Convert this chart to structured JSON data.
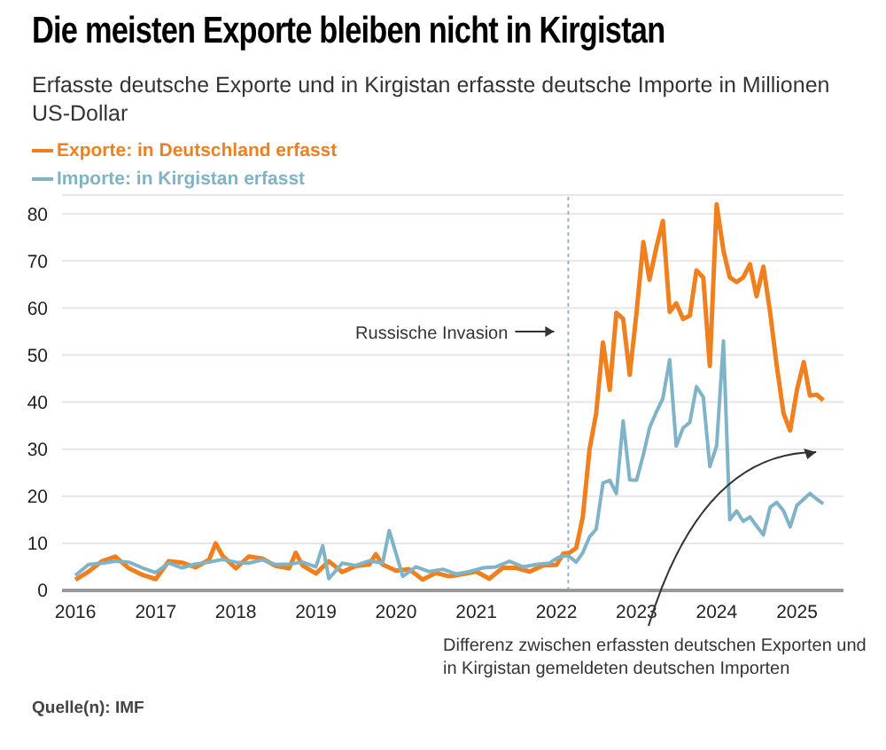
{
  "chart_data": {
    "type": "line",
    "title": "Die meisten Exporte bleiben nicht in Kirgistan",
    "subtitle": "Erfasste deutsche Exporte und in Kirgistan erfasste deutsche Importe in Millionen US-Dollar",
    "series": [
      {
        "name": "Exporte: in Deutschland erfasst",
        "color": "#f07f1e",
        "x": [
          "2016-01",
          "2016-03",
          "2016-05",
          "2016-07",
          "2016-09",
          "2016-11",
          "2017-01",
          "2017-03",
          "2017-05",
          "2017-07",
          "2017-09",
          "2017-10",
          "2017-11",
          "2018-01",
          "2018-03",
          "2018-05",
          "2018-07",
          "2018-09",
          "2018-10",
          "2018-11",
          "2019-01",
          "2019-03",
          "2019-05",
          "2019-07",
          "2019-09",
          "2019-10",
          "2019-11",
          "2020-01",
          "2020-03",
          "2020-05",
          "2020-07",
          "2020-09",
          "2020-11",
          "2021-01",
          "2021-03",
          "2021-05",
          "2021-07",
          "2021-09",
          "2021-11",
          "2022-01",
          "2022-02",
          "2022-03",
          "2022-04",
          "2022-05",
          "2022-06",
          "2022-07",
          "2022-08",
          "2022-09",
          "2022-10",
          "2022-11",
          "2022-12",
          "2023-01",
          "2023-02",
          "2023-03",
          "2023-04",
          "2023-05",
          "2023-06",
          "2023-07",
          "2023-08",
          "2023-09",
          "2023-10",
          "2023-11",
          "2023-12",
          "2024-01",
          "2024-02",
          "2024-03",
          "2024-04",
          "2024-05",
          "2024-06",
          "2024-07",
          "2024-08",
          "2024-09",
          "2024-10",
          "2024-11",
          "2024-12",
          "2025-01",
          "2025-02",
          "2025-03",
          "2025-04",
          "2025-05"
        ],
        "values": [
          2.3,
          4,
          6.2,
          7.2,
          4.7,
          3.3,
          2.4,
          6.2,
          5.9,
          4.9,
          6.5,
          10,
          7.4,
          4.7,
          7.2,
          6.8,
          5.2,
          4.7,
          8,
          5.3,
          3.6,
          6.2,
          3.9,
          5.2,
          5.5,
          7.7,
          5.5,
          4.2,
          4.5,
          2.3,
          3.7,
          3.0,
          3.5,
          4,
          2.5,
          4.8,
          4.8,
          4.0,
          5.3,
          5.4,
          7.8,
          8,
          9,
          15.6,
          30,
          37.6,
          52.7,
          42.6,
          59,
          57.7,
          45.8,
          59,
          74,
          66,
          72.8,
          78.5,
          59.2,
          61,
          57.7,
          58.4,
          68,
          66.5,
          47.7,
          82,
          72.2,
          66.5,
          65.5,
          66.5,
          69.3,
          62.5,
          68.8,
          59,
          47.7,
          37.6,
          34,
          42.6,
          48.5,
          41.4,
          41.6,
          40.4
        ]
      },
      {
        "name": "Importe: in Kirgistan erfasst",
        "color": "#7fb3c8",
        "x": [
          "2016-01",
          "2016-03",
          "2016-05",
          "2016-07",
          "2016-09",
          "2016-11",
          "2017-01",
          "2017-03",
          "2017-05",
          "2017-07",
          "2017-09",
          "2017-11",
          "2018-01",
          "2018-03",
          "2018-05",
          "2018-07",
          "2018-09",
          "2018-11",
          "2019-01",
          "2019-02",
          "2019-03",
          "2019-05",
          "2019-07",
          "2019-09",
          "2019-11",
          "2019-12",
          "2020-02",
          "2020-04",
          "2020-06",
          "2020-08",
          "2020-10",
          "2020-12",
          "2021-02",
          "2021-04",
          "2021-06",
          "2021-08",
          "2021-10",
          "2021-12",
          "2022-01",
          "2022-02",
          "2022-03",
          "2022-04",
          "2022-05",
          "2022-06",
          "2022-07",
          "2022-08",
          "2022-09",
          "2022-10",
          "2022-11",
          "2022-12",
          "2023-01",
          "2023-02",
          "2023-03",
          "2023-04",
          "2023-05",
          "2023-06",
          "2023-07",
          "2023-08",
          "2023-09",
          "2023-10",
          "2023-11",
          "2023-12",
          "2024-01",
          "2024-02",
          "2024-03",
          "2024-04",
          "2024-05",
          "2024-06",
          "2024-07",
          "2024-08",
          "2024-09",
          "2024-10",
          "2024-11",
          "2024-12",
          "2025-01",
          "2025-02",
          "2025-03",
          "2025-04",
          "2025-05"
        ],
        "values": [
          3.2,
          5.5,
          5.8,
          6.2,
          6.0,
          4.8,
          3.8,
          5.8,
          4.8,
          5.6,
          6.0,
          6.6,
          6.0,
          5.8,
          6.5,
          5.5,
          5.6,
          6.0,
          5.0,
          9.5,
          2.5,
          5.8,
          5.3,
          6.3,
          5.8,
          12.7,
          3,
          5,
          4,
          4.5,
          3.5,
          4,
          4.8,
          5.0,
          6.2,
          5.0,
          5.5,
          5.8,
          6.8,
          7.4,
          7.2,
          6,
          8,
          11.4,
          13,
          22.8,
          23.4,
          20.6,
          36,
          23.5,
          23.4,
          28.8,
          34.5,
          37.9,
          40.8,
          49,
          30.7,
          34.5,
          35.7,
          43.3,
          41.1,
          26.3,
          30.7,
          53,
          15,
          16.9,
          14.7,
          15.6,
          13.7,
          11.8,
          17.7,
          18.7,
          16.9,
          13.5,
          18.1,
          19.4,
          20.6,
          19.4,
          18.4
        ]
      }
    ],
    "xlim": [
      "2015-11",
      "2025-08"
    ],
    "xticks": [
      "2016",
      "2017",
      "2018",
      "2019",
      "2020",
      "2021",
      "2022",
      "2023",
      "2024",
      "2025"
    ],
    "ylim": [
      0,
      84
    ],
    "yticks": [
      0,
      10,
      20,
      30,
      40,
      50,
      60,
      70,
      80
    ],
    "grid": "y",
    "legend": "top left",
    "marker": "none",
    "line_style": "solid",
    "ref_lines": [
      {
        "axis": "x",
        "value": "2022-02-24",
        "label": "Russische Invasion",
        "color": "#9fb6c6",
        "line_style": "dotted"
      }
    ],
    "annotations": [
      "Differenz zwischen erfassten deutschen Exporten und in Kirgistan gemeldeten deutschen Importen",
      "Quelle(n): IMF"
    ]
  }
}
